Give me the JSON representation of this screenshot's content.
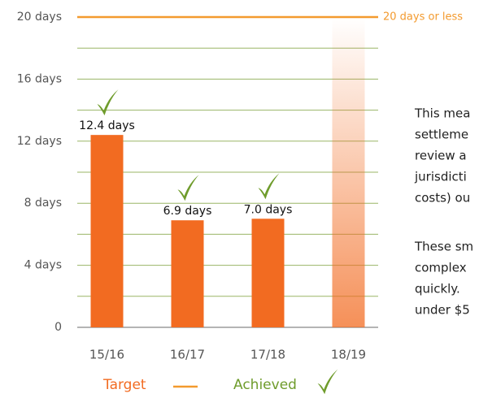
{
  "chart_data": {
    "type": "bar",
    "categories": [
      "15/16",
      "16/17",
      "17/18",
      "18/19"
    ],
    "values": [
      12.4,
      6.9,
      7.0,
      null
    ],
    "value_labels": [
      "12.4 days",
      "6.9 days",
      "7.0 days",
      null
    ],
    "achieved": [
      true,
      true,
      true,
      false
    ],
    "color": "#f26b21",
    "ylim": [
      0,
      20
    ],
    "yticks": [
      0,
      {
        "value": 4,
        "label": "4 days"
      },
      {
        "value": 8,
        "label": "8 days"
      },
      {
        "value": 12,
        "label": "12 days"
      },
      {
        "value": 16,
        "label": "16 days"
      },
      {
        "value": 20,
        "label": "20 days"
      }
    ],
    "minor_yticks": [
      2,
      6,
      10,
      14,
      18
    ],
    "grid": true,
    "grid_color": "#9ab566",
    "target": 20,
    "target_label": "20 days or less",
    "target_color": "#f39a2e",
    "check_color": "#6f9c2c",
    "legend": {
      "target": "Target",
      "achieved": "Achieved"
    },
    "side_text": [
      [
        "This mea",
        "settleme",
        "review a",
        "jurisdicti",
        "costs) ou"
      ],
      [
        "These sm",
        "complex",
        "quickly.",
        "under $5"
      ]
    ]
  }
}
